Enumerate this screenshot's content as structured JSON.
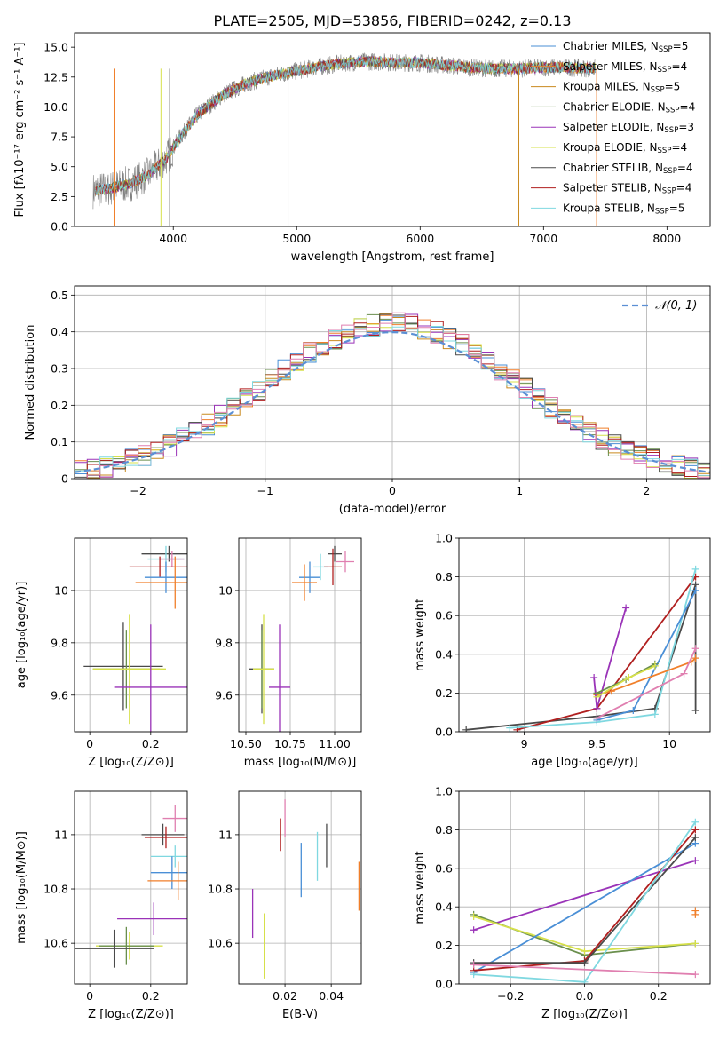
{
  "figure_title": "PLATE=2505, MJD=53856, FIBERID=0242, z=0.13",
  "colors": {
    "chabrier_miles": "#4a8fd6",
    "salpeter_miles": "#f07f2a",
    "kroupa_miles": "#c98a1f",
    "chabrier_elodie": "#6a8f4d",
    "salpeter_elodie": "#9a33b8",
    "kroupa_elodie": "#d6e04a",
    "chabrier_stelib": "#4a4a4a",
    "salpeter_stelib": "#b01f1f",
    "kroupa_stelib": "#7fd8e0",
    "data": "#808080",
    "gaussian": "#5b8fd4",
    "pink": "#e07fb0"
  },
  "chart_data": [
    {
      "id": "spectrum",
      "type": "line",
      "xlabel": "wavelength [Angstrom, rest frame]",
      "ylabel": "Flux [fλ10⁻¹⁷ erg cm⁻² s⁻¹ A⁻¹]",
      "xlim": [
        3200,
        8350
      ],
      "ylim": [
        0,
        16.2
      ],
      "xticks": [
        4000,
        5000,
        6000,
        7000,
        8000
      ],
      "yticks": [
        0.0,
        2.5,
        5.0,
        7.5,
        10.0,
        12.5,
        15.0
      ],
      "grid": false,
      "legend_position": "right",
      "continuum": [
        [
          3350,
          3.0
        ],
        [
          3500,
          3.2
        ],
        [
          3650,
          3.6
        ],
        [
          3800,
          4.3
        ],
        [
          3950,
          5.8
        ],
        [
          4050,
          7.4
        ],
        [
          4200,
          9.4
        ],
        [
          4400,
          11.0
        ],
        [
          4600,
          12.0
        ],
        [
          4800,
          12.6
        ],
        [
          5000,
          13.0
        ],
        [
          5200,
          13.4
        ],
        [
          5400,
          13.7
        ],
        [
          5600,
          13.8
        ],
        [
          5800,
          13.7
        ],
        [
          6000,
          13.7
        ],
        [
          6200,
          13.5
        ],
        [
          6400,
          13.3
        ],
        [
          6600,
          13.2
        ],
        [
          6800,
          13.2
        ],
        [
          7000,
          13.3
        ],
        [
          7200,
          13.3
        ],
        [
          7400,
          13.2
        ]
      ],
      "legend": [
        {
          "label": "Chabrier MILES, N",
          "sub": "SSP",
          "value": "=5",
          "color_key": "chabrier_miles"
        },
        {
          "label": "Salpeter MILES, N",
          "sub": "SSP",
          "value": "=4",
          "color_key": "salpeter_miles"
        },
        {
          "label": "Kroupa MILES, N",
          "sub": "SSP",
          "value": "=5",
          "color_key": "kroupa_miles"
        },
        {
          "label": "Chabrier ELODIE, N",
          "sub": "SSP",
          "value": "=4",
          "color_key": "chabrier_elodie"
        },
        {
          "label": "Salpeter ELODIE, N",
          "sub": "SSP",
          "value": "=3",
          "color_key": "salpeter_elodie"
        },
        {
          "label": "Kroupa ELODIE, N",
          "sub": "SSP",
          "value": "=4",
          "color_key": "kroupa_elodie"
        },
        {
          "label": "Chabrier STELIB, N",
          "sub": "SSP",
          "value": "=4",
          "color_key": "chabrier_stelib"
        },
        {
          "label": "Salpeter STELIB, N",
          "sub": "SSP",
          "value": "=4",
          "color_key": "salpeter_stelib"
        },
        {
          "label": "Kroupa STELIB, N",
          "sub": "SSP",
          "value": "=5",
          "color_key": "kroupa_stelib"
        }
      ]
    },
    {
      "id": "residuals",
      "type": "line",
      "xlabel": "(data-model)/error",
      "ylabel": "Normed distribution",
      "xlim": [
        -2.5,
        2.5
      ],
      "ylim": [
        0,
        0.525
      ],
      "xticks": [
        -2,
        -1,
        0,
        1,
        2
      ],
      "xticklabels": [
        "−2",
        "−1",
        "0",
        "1",
        "2"
      ],
      "yticks": [
        0.0,
        0.1,
        0.2,
        0.3,
        0.4,
        0.5
      ],
      "grid": true,
      "legend_position": "top-right",
      "legend_label": "𝒩(0, 1)"
    },
    {
      "id": "age_vs_Z",
      "type": "scatter",
      "xlabel": "Z [log₁₀(Z/Z⊙)]",
      "ylabel": "age  [log₁₀(age/yr)]",
      "xlim": [
        -0.05,
        0.32
      ],
      "ylim": [
        9.46,
        10.2
      ],
      "xticks": [
        0.0,
        0.2
      ],
      "yticks": [
        9.6,
        9.8,
        10.0
      ],
      "grid": true,
      "points": [
        {
          "x": 0.26,
          "y": 10.14,
          "xerr": 0.09,
          "yerr": 0.03,
          "color_key": "chabrier_stelib"
        },
        {
          "x": 0.25,
          "y": 10.12,
          "xerr": 0.06,
          "yerr": 0.05,
          "color_key": "kroupa_stelib"
        },
        {
          "x": 0.27,
          "y": 10.12,
          "xerr": 0.04,
          "yerr": 0.03,
          "color_key": "pink"
        },
        {
          "x": 0.23,
          "y": 10.09,
          "xerr": 0.1,
          "yerr": 0.04,
          "color_key": "salpeter_stelib"
        },
        {
          "x": 0.25,
          "y": 10.05,
          "xerr": 0.07,
          "yerr": 0.06,
          "color_key": "chabrier_miles"
        },
        {
          "x": 0.28,
          "y": 10.03,
          "xerr": 0.13,
          "yerr": 0.1,
          "color_key": "salpeter_miles"
        },
        {
          "x": 0.11,
          "y": 9.71,
          "xerr": 0.13,
          "yerr": 0.17,
          "color_key": "chabrier_stelib"
        },
        {
          "x": 0.12,
          "y": 9.7,
          "xerr": 0.11,
          "yerr": 0.15,
          "color_key": "chabrier_elodie"
        },
        {
          "x": 0.13,
          "y": 9.7,
          "xerr": 0.12,
          "yerr": 0.21,
          "color_key": "kroupa_elodie"
        },
        {
          "x": 0.2,
          "y": 9.63,
          "xerr": 0.12,
          "yerr": 0.24,
          "color_key": "salpeter_elodie"
        }
      ]
    },
    {
      "id": "age_vs_mass",
      "type": "scatter",
      "xlabel": "mass [log₁₀(M/M⊙)]",
      "ylabel": "",
      "xlim": [
        10.46,
        11.15
      ],
      "ylim": [
        9.46,
        10.2
      ],
      "xticks": [
        10.5,
        10.75,
        11.0
      ],
      "xticklabels": [
        "10.50",
        "10.75",
        "11.00"
      ],
      "yticks": [
        9.6,
        9.8,
        10.0
      ],
      "grid": true,
      "points": [
        {
          "x": 11.0,
          "y": 10.14,
          "xerr": 0.04,
          "yerr": 0.03,
          "color_key": "chabrier_stelib"
        },
        {
          "x": 11.06,
          "y": 10.11,
          "xerr": 0.05,
          "yerr": 0.04,
          "color_key": "pink"
        },
        {
          "x": 10.92,
          "y": 10.09,
          "xerr": 0.04,
          "yerr": 0.05,
          "color_key": "kroupa_stelib"
        },
        {
          "x": 10.99,
          "y": 10.09,
          "xerr": 0.05,
          "yerr": 0.07,
          "color_key": "salpeter_stelib"
        },
        {
          "x": 10.86,
          "y": 10.05,
          "xerr": 0.06,
          "yerr": 0.06,
          "color_key": "chabrier_miles"
        },
        {
          "x": 10.83,
          "y": 10.03,
          "xerr": 0.07,
          "yerr": 0.07,
          "color_key": "salpeter_miles"
        },
        {
          "x": 10.59,
          "y": 9.7,
          "xerr": 0.07,
          "yerr": 0.17,
          "color_key": "chabrier_stelib"
        },
        {
          "x": 10.59,
          "y": 9.7,
          "xerr": 0.05,
          "yerr": 0.15,
          "color_key": "chabrier_elodie"
        },
        {
          "x": 10.6,
          "y": 9.7,
          "xerr": 0.06,
          "yerr": 0.21,
          "color_key": "kroupa_elodie"
        },
        {
          "x": 10.69,
          "y": 9.63,
          "xerr": 0.06,
          "yerr": 0.24,
          "color_key": "salpeter_elodie"
        }
      ]
    },
    {
      "id": "massweight_vs_age",
      "type": "line",
      "xlabel": "age  [log₁₀(age/yr)]",
      "ylabel": "mass weight",
      "xlim": [
        8.55,
        10.28
      ],
      "ylim": [
        0,
        1
      ],
      "xticks": [
        9.0,
        9.5,
        10.0
      ],
      "yticks": [
        0.0,
        0.2,
        0.4,
        0.6,
        0.8,
        1.0
      ],
      "grid": true,
      "series": [
        {
          "color_key": "chabrier_stelib",
          "x": [
            8.6,
            9.5,
            9.9,
            10.18,
            10.18
          ],
          "y": [
            0.01,
            0.08,
            0.12,
            0.76,
            0.11
          ]
        },
        {
          "color_key": "salpeter_stelib",
          "x": [
            8.95,
            9.5,
            10.18
          ],
          "y": [
            0.01,
            0.12,
            0.8
          ]
        },
        {
          "color_key": "kroupa_stelib",
          "x": [
            8.9,
            9.5,
            9.9,
            10.18
          ],
          "y": [
            0.02,
            0.05,
            0.09,
            0.84
          ]
        },
        {
          "color_key": "chabrier_miles",
          "x": [
            9.5,
            9.75,
            10.18
          ],
          "y": [
            0.06,
            0.11,
            0.73
          ]
        },
        {
          "color_key": "salpeter_miles",
          "x": [
            9.5,
            9.6,
            10.15,
            10.18
          ],
          "y": [
            0.19,
            0.21,
            0.36,
            0.38
          ]
        },
        {
          "color_key": "pink",
          "x": [
            9.5,
            10.1,
            10.18
          ],
          "y": [
            0.07,
            0.3,
            0.43
          ]
        },
        {
          "color_key": "salpeter_elodie",
          "x": [
            9.48,
            9.5,
            9.7
          ],
          "y": [
            0.28,
            0.12,
            0.64
          ]
        },
        {
          "color_key": "chabrier_elodie",
          "x": [
            9.5,
            9.7,
            9.9
          ],
          "y": [
            0.2,
            0.27,
            0.35
          ]
        },
        {
          "color_key": "kroupa_elodie",
          "x": [
            9.5,
            9.72,
            9.9
          ],
          "y": [
            0.18,
            0.28,
            0.34
          ]
        }
      ]
    },
    {
      "id": "mass_vs_Z",
      "type": "scatter",
      "xlabel": "Z [log₁₀(Z/Z⊙)]",
      "ylabel": "mass [log₁₀(M/M⊙)]",
      "xlim": [
        -0.05,
        0.32
      ],
      "ylim": [
        10.45,
        11.16
      ],
      "xticks": [
        0.0,
        0.2
      ],
      "yticks": [
        10.6,
        10.8,
        11.0
      ],
      "grid": true,
      "points": [
        {
          "x": 0.28,
          "y": 11.06,
          "xerr": 0.04,
          "yerr": 0.05,
          "color_key": "pink"
        },
        {
          "x": 0.24,
          "y": 11.0,
          "xerr": 0.07,
          "yerr": 0.04,
          "color_key": "chabrier_stelib"
        },
        {
          "x": 0.25,
          "y": 10.99,
          "xerr": 0.07,
          "yerr": 0.04,
          "color_key": "salpeter_stelib"
        },
        {
          "x": 0.28,
          "y": 10.92,
          "xerr": 0.08,
          "yerr": 0.04,
          "color_key": "kroupa_stelib"
        },
        {
          "x": 0.27,
          "y": 10.86,
          "xerr": 0.07,
          "yerr": 0.06,
          "color_key": "chabrier_miles"
        },
        {
          "x": 0.29,
          "y": 10.83,
          "xerr": 0.1,
          "yerr": 0.07,
          "color_key": "salpeter_miles"
        },
        {
          "x": 0.21,
          "y": 10.69,
          "xerr": 0.12,
          "yerr": 0.06,
          "color_key": "salpeter_elodie"
        },
        {
          "x": 0.13,
          "y": 10.59,
          "xerr": 0.11,
          "yerr": 0.05,
          "color_key": "kroupa_elodie"
        },
        {
          "x": 0.12,
          "y": 10.59,
          "xerr": 0.09,
          "yerr": 0.07,
          "color_key": "chabrier_elodie"
        },
        {
          "x": 0.08,
          "y": 10.58,
          "xerr": 0.13,
          "yerr": 0.07,
          "color_key": "chabrier_stelib"
        }
      ]
    },
    {
      "id": "mass_vs_ebv",
      "type": "scatter",
      "xlabel": "E(B-V)",
      "ylabel": "",
      "xlim": [
        0.0,
        0.053
      ],
      "ylim": [
        10.45,
        11.16
      ],
      "xticks": [
        0.02,
        0.04
      ],
      "yticks": [
        10.6,
        10.8,
        11.0
      ],
      "grid": true,
      "points": [
        {
          "x": 0.006,
          "y": 10.71,
          "yerr": 0.09,
          "color_key": "salpeter_elodie"
        },
        {
          "x": 0.011,
          "y": 10.6,
          "yerr": 0.07,
          "color_key": "chabrier_elodie"
        },
        {
          "x": 0.011,
          "y": 10.59,
          "yerr": 0.12,
          "color_key": "kroupa_elodie"
        },
        {
          "x": 0.018,
          "y": 11.0,
          "yerr": 0.06,
          "color_key": "salpeter_stelib"
        },
        {
          "x": 0.02,
          "y": 11.06,
          "yerr": 0.07,
          "color_key": "pink"
        },
        {
          "x": 0.027,
          "y": 10.87,
          "yerr": 0.1,
          "color_key": "chabrier_miles"
        },
        {
          "x": 0.034,
          "y": 10.92,
          "yerr": 0.09,
          "color_key": "kroupa_stelib"
        },
        {
          "x": 0.038,
          "y": 10.96,
          "yerr": 0.08,
          "color_key": "chabrier_stelib"
        },
        {
          "x": 0.052,
          "y": 10.81,
          "yerr": 0.09,
          "color_key": "salpeter_miles"
        }
      ]
    },
    {
      "id": "massweight_vs_Z",
      "type": "line",
      "xlabel": "Z [log₁₀(Z/Z⊙)]",
      "ylabel": "mass weight",
      "xlim": [
        -0.34,
        0.34
      ],
      "ylim": [
        0,
        1
      ],
      "xticks": [
        -0.2,
        0.0,
        0.2
      ],
      "xticklabels": [
        "−0.2",
        "0.0",
        "0.2"
      ],
      "yticks": [
        0.0,
        0.2,
        0.4,
        0.6,
        0.8,
        1.0
      ],
      "grid": true,
      "series": [
        {
          "color_key": "salpeter_elodie",
          "x": [
            -0.3,
            0.3
          ],
          "y": [
            0.28,
            0.64
          ]
        },
        {
          "color_key": "chabrier_elodie",
          "x": [
            -0.3,
            0.0,
            0.3
          ],
          "y": [
            0.36,
            0.15,
            0.21
          ]
        },
        {
          "color_key": "kroupa_elodie",
          "x": [
            -0.3,
            0.0,
            0.3
          ],
          "y": [
            0.35,
            0.17,
            0.21
          ]
        },
        {
          "color_key": "chabrier_miles",
          "x": [
            -0.3,
            0.3
          ],
          "y": [
            0.06,
            0.73
          ]
        },
        {
          "color_key": "salpeter_stelib",
          "x": [
            -0.3,
            0.0,
            0.3
          ],
          "y": [
            0.07,
            0.12,
            0.8
          ]
        },
        {
          "color_key": "chabrier_stelib",
          "x": [
            -0.3,
            0.0,
            0.3
          ],
          "y": [
            0.11,
            0.11,
            0.76
          ]
        },
        {
          "color_key": "kroupa_stelib",
          "x": [
            -0.3,
            0.0,
            0.3
          ],
          "y": [
            0.05,
            0.01,
            0.84
          ]
        },
        {
          "color_key": "pink",
          "x": [
            -0.3,
            0.3
          ],
          "y": [
            0.1,
            0.05
          ]
        },
        {
          "color_key": "salpeter_miles",
          "x": [
            0.3,
            0.3
          ],
          "y": [
            0.36,
            0.38
          ]
        }
      ]
    }
  ]
}
